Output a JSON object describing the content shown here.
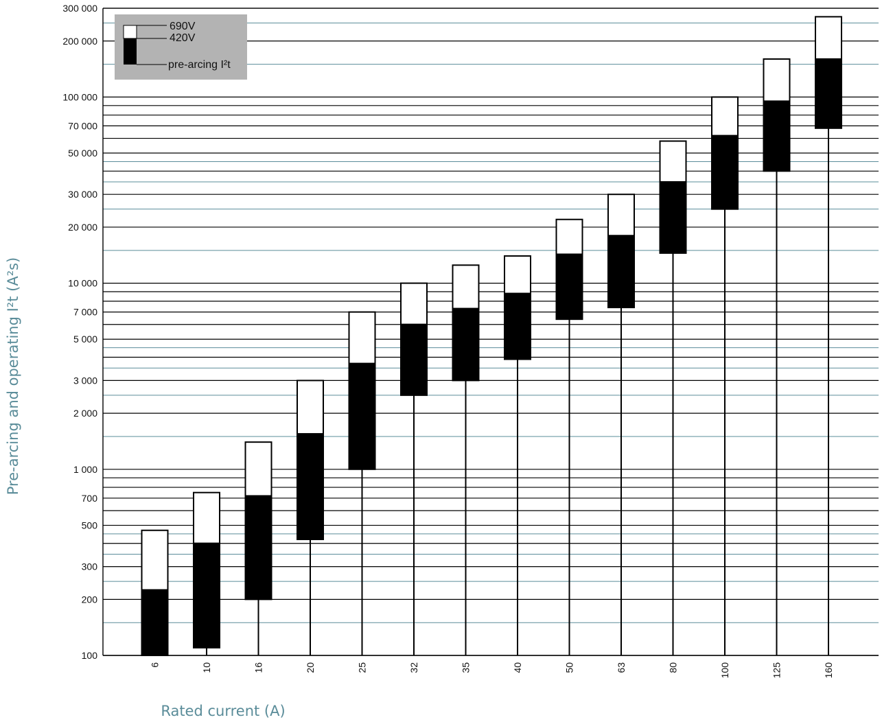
{
  "chart_data": {
    "type": "bar",
    "subtype": "floating-range",
    "title": "",
    "xlabel": "Rated current (A)",
    "ylabel": "Pre-arcing and operating I²t (A²s)",
    "yscale": "log",
    "ylim": [
      100,
      300000
    ],
    "grid": true,
    "legend_position": "top-left",
    "categories": [
      "6",
      "10",
      "16",
      "20",
      "25",
      "32",
      "35",
      "40",
      "50",
      "63",
      "80",
      "100",
      "125",
      "160"
    ],
    "series": [
      {
        "name": "pre-arcing I²t",
        "color": "#000000",
        "values": [
          100,
          110,
          200,
          420,
          1000,
          2500,
          3000,
          3900,
          6400,
          7400,
          14500,
          25000,
          40000,
          68000
        ]
      },
      {
        "name": "420V",
        "color": "#000000",
        "values": [
          225,
          400,
          720,
          1550,
          3700,
          6000,
          7300,
          8800,
          14300,
          18000,
          35000,
          62000,
          95000,
          160000
        ]
      },
      {
        "name": "690V",
        "color": "#ffffff",
        "values": [
          470,
          750,
          1400,
          3000,
          7000,
          10000,
          12500,
          14000,
          22000,
          30000,
          58000,
          100000,
          160000,
          270000
        ]
      }
    ],
    "y_tick_labels": [
      "300 000",
      "200 000",
      "100 000",
      "70 000",
      "50 000",
      "30 000",
      "20 000",
      "10 000",
      "7 000",
      "5 000",
      "3 000",
      "2 000",
      "1 000",
      "700",
      "500",
      "300",
      "200",
      "100"
    ],
    "y_tick_values": [
      300000,
      200000,
      100000,
      70000,
      50000,
      30000,
      20000,
      10000,
      7000,
      5000,
      3000,
      2000,
      1000,
      700,
      500,
      300,
      200,
      100
    ],
    "legend": {
      "items": [
        "690V",
        "420V",
        "pre-arcing I²t"
      ],
      "background": "#b3b3b3"
    },
    "colors": {
      "gridline_dark": "#000000",
      "gridline_accent": "#5a8c99",
      "axis_title": "#5a8c99"
    }
  }
}
